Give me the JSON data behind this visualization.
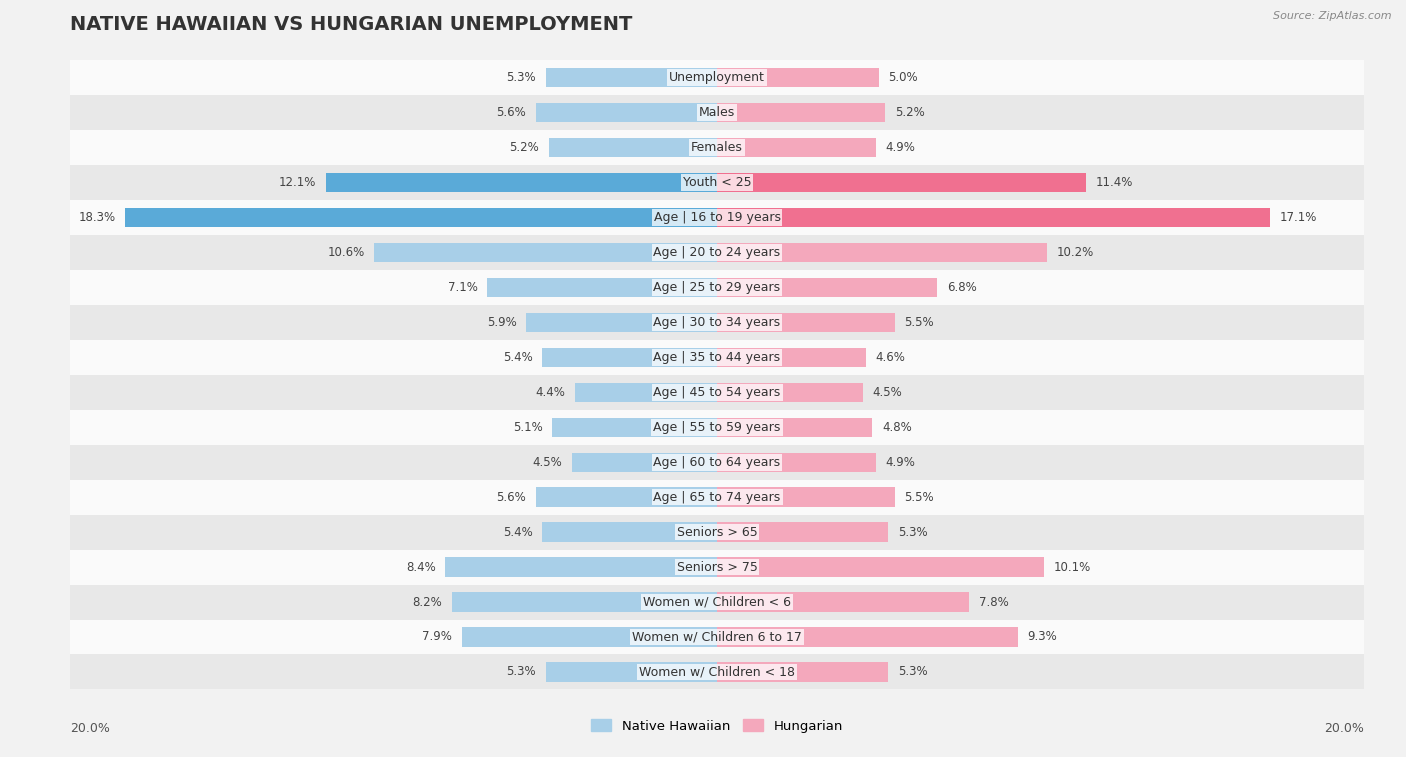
{
  "title": "NATIVE HAWAIIAN VS HUNGARIAN UNEMPLOYMENT",
  "source": "Source: ZipAtlas.com",
  "categories": [
    "Unemployment",
    "Males",
    "Females",
    "Youth < 25",
    "Age | 16 to 19 years",
    "Age | 20 to 24 years",
    "Age | 25 to 29 years",
    "Age | 30 to 34 years",
    "Age | 35 to 44 years",
    "Age | 45 to 54 years",
    "Age | 55 to 59 years",
    "Age | 60 to 64 years",
    "Age | 65 to 74 years",
    "Seniors > 65",
    "Seniors > 75",
    "Women w/ Children < 6",
    "Women w/ Children 6 to 17",
    "Women w/ Children < 18"
  ],
  "native_hawaiian": [
    5.3,
    5.6,
    5.2,
    12.1,
    18.3,
    10.6,
    7.1,
    5.9,
    5.4,
    4.4,
    5.1,
    4.5,
    5.6,
    5.4,
    8.4,
    8.2,
    7.9,
    5.3
  ],
  "hungarian": [
    5.0,
    5.2,
    4.9,
    11.4,
    17.1,
    10.2,
    6.8,
    5.5,
    4.6,
    4.5,
    4.8,
    4.9,
    5.5,
    5.3,
    10.1,
    7.8,
    9.3,
    5.3
  ],
  "native_hawaiian_color": "#a8cfe8",
  "hungarian_color": "#f4a8bc",
  "native_hawaiian_highlight_color": "#5aaad8",
  "hungarian_highlight_color": "#f07090",
  "bar_height": 0.55,
  "max_val": 20.0,
  "background_color": "#f2f2f2",
  "row_light_color": "#fafafa",
  "row_dark_color": "#e8e8e8",
  "title_fontsize": 14,
  "label_fontsize": 9,
  "value_fontsize": 8.5,
  "highlight_rows": [
    "Youth < 25",
    "Age | 16 to 19 years"
  ]
}
